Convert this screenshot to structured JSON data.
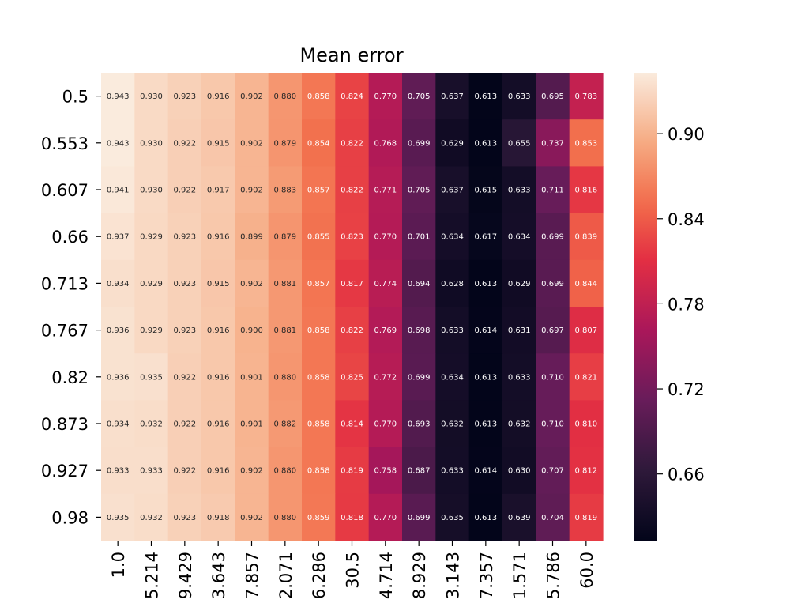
{
  "chart_data": {
    "type": "heatmap",
    "title": "Mean error",
    "xlabel": "",
    "ylabel": "",
    "x_categories": [
      "1.0",
      "5.214",
      "9.429",
      "3.643",
      "7.857",
      "2.071",
      "6.286",
      "30.5",
      "4.714",
      "8.929",
      "3.143",
      "7.357",
      "1.571",
      "5.786",
      "60.0"
    ],
    "y_categories": [
      "0.5",
      "0.553",
      "0.607",
      "0.66",
      "0.713",
      "0.767",
      "0.82",
      "0.873",
      "0.927",
      "0.98"
    ],
    "values": [
      [
        0.943,
        0.93,
        0.923,
        0.916,
        0.902,
        0.88,
        0.858,
        0.824,
        0.77,
        0.705,
        0.637,
        0.613,
        0.633,
        0.695,
        0.783
      ],
      [
        0.943,
        0.93,
        0.922,
        0.915,
        0.902,
        0.879,
        0.854,
        0.822,
        0.768,
        0.699,
        0.629,
        0.613,
        0.655,
        0.737,
        0.853
      ],
      [
        0.941,
        0.93,
        0.922,
        0.917,
        0.902,
        0.883,
        0.857,
        0.822,
        0.771,
        0.705,
        0.637,
        0.615,
        0.633,
        0.711,
        0.816
      ],
      [
        0.937,
        0.929,
        0.923,
        0.916,
        0.899,
        0.879,
        0.855,
        0.823,
        0.77,
        0.701,
        0.634,
        0.617,
        0.634,
        0.699,
        0.839
      ],
      [
        0.934,
        0.929,
        0.923,
        0.915,
        0.902,
        0.881,
        0.857,
        0.817,
        0.774,
        0.694,
        0.628,
        0.613,
        0.629,
        0.699,
        0.844
      ],
      [
        0.936,
        0.929,
        0.923,
        0.916,
        0.9,
        0.881,
        0.858,
        0.822,
        0.769,
        0.698,
        0.633,
        0.614,
        0.631,
        0.697,
        0.807
      ],
      [
        0.936,
        0.935,
        0.922,
        0.916,
        0.901,
        0.88,
        0.858,
        0.825,
        0.772,
        0.699,
        0.634,
        0.613,
        0.633,
        0.71,
        0.821
      ],
      [
        0.934,
        0.932,
        0.922,
        0.916,
        0.901,
        0.882,
        0.858,
        0.814,
        0.77,
        0.693,
        0.632,
        0.613,
        0.632,
        0.71,
        0.81
      ],
      [
        0.933,
        0.933,
        0.922,
        0.916,
        0.902,
        0.88,
        0.858,
        0.819,
        0.758,
        0.687,
        0.633,
        0.614,
        0.63,
        0.707,
        0.812
      ],
      [
        0.935,
        0.932,
        0.923,
        0.918,
        0.902,
        0.88,
        0.859,
        0.818,
        0.77,
        0.699,
        0.635,
        0.613,
        0.639,
        0.704,
        0.819
      ]
    ],
    "colormap": "rocket",
    "vmin": 0.613,
    "vmax": 0.943,
    "colorbar_ticks": [
      "0.66",
      "0.72",
      "0.78",
      "0.84",
      "0.90"
    ],
    "cell_label_dark_color": "#262626",
    "cell_label_light_color": "#ffffff",
    "grid": false,
    "legend": "colorbar-right"
  }
}
